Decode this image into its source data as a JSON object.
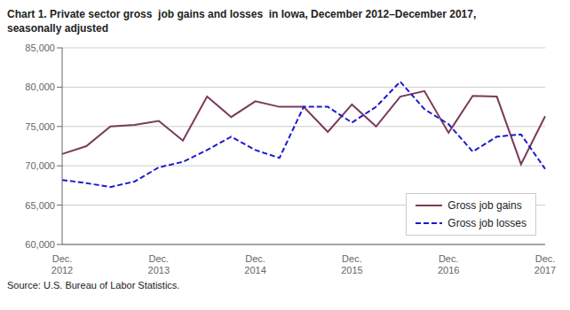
{
  "chart_data": {
    "type": "line",
    "title": "Chart 1. Private sector gross  job gains and losses  in Iowa, December 2012–December 2017,",
    "subtitle": "seasonally adjusted",
    "annotations": [
      "Source: U.S. Bureau of Labor Statistics."
    ],
    "categories": [
      "Dec.\n2012",
      null,
      null,
      null,
      "Dec.\n2013",
      null,
      null,
      null,
      "Dec.\n2014",
      null,
      null,
      null,
      "Dec.\n2015",
      null,
      null,
      null,
      "Dec.\n2016",
      null,
      null,
      null,
      "Dec.\n2017"
    ],
    "series": [
      {
        "name": "Gross job gains",
        "color": "#7B3A5A",
        "line_style": "solid",
        "values": [
          71500,
          72500,
          75000,
          75200,
          75700,
          73200,
          78800,
          76200,
          78200,
          77500,
          77500,
          74300,
          77800,
          75000,
          78800,
          79500,
          74200,
          78900,
          78800,
          70200,
          76300
        ]
      },
      {
        "name": "Gross job losses",
        "color": "#1C1CCC",
        "line_style": "dashed",
        "values": [
          68200,
          67800,
          67300,
          68000,
          69800,
          70500,
          72000,
          73700,
          72000,
          71000,
          77500,
          77500,
          75500,
          77500,
          80700,
          77200,
          75300,
          71800,
          73700,
          74000,
          69600
        ]
      }
    ],
    "ylim": [
      60000,
      85000
    ],
    "yticks": [
      {
        "value": 60000,
        "label": "60,000"
      },
      {
        "value": 65000,
        "label": "65,000"
      },
      {
        "value": 70000,
        "label": "70,000"
      },
      {
        "value": 75000,
        "label": "75,000"
      },
      {
        "value": 80000,
        "label": "80,000"
      },
      {
        "value": 85000,
        "label": "85,000"
      }
    ],
    "grid": true,
    "legend": "lower right"
  }
}
